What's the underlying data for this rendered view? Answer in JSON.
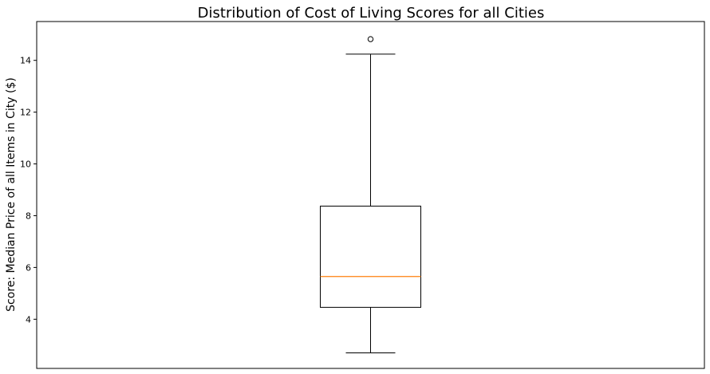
{
  "chart_data": {
    "type": "box",
    "title": "Distribution of Cost of Living Scores for all Cities",
    "xlabel": "",
    "ylabel": "Score: Median Price of all Items in City ($)",
    "ylim": [
      2.1,
      15.5
    ],
    "yticks": [
      4,
      6,
      8,
      10,
      12,
      14
    ],
    "grid": false,
    "boxes": [
      {
        "whisker_low": 2.7,
        "q1": 4.46,
        "median": 5.65,
        "q3": 8.37,
        "whisker_high": 14.24,
        "outliers": [
          14.82
        ]
      }
    ],
    "colors": {
      "box": "#000000",
      "median": "#ff7f0e",
      "whisker": "#000000",
      "outlier": "#000000"
    }
  }
}
